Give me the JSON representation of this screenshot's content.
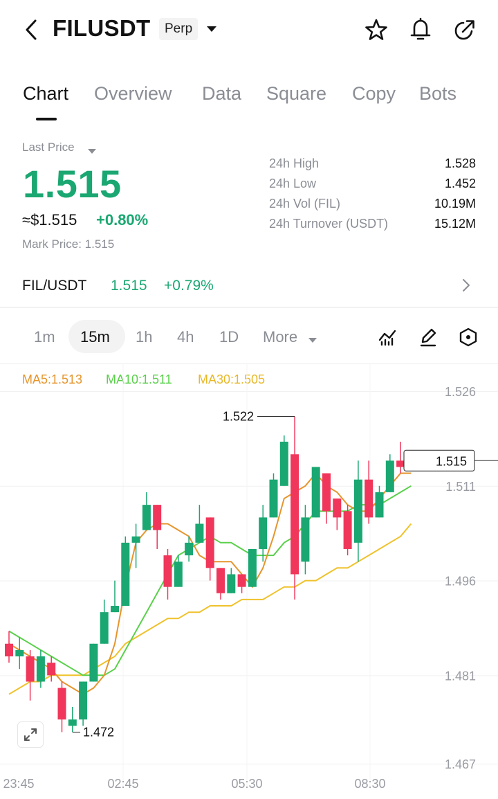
{
  "header": {
    "symbol": "FILUSDT",
    "contract_type": "Perp",
    "icons": [
      "back-arrow-icon",
      "star-icon",
      "bell-icon",
      "share-icon"
    ]
  },
  "tabs": [
    {
      "label": "Chart",
      "active": true
    },
    {
      "label": "Overview",
      "active": false
    },
    {
      "label": "Data",
      "active": false
    },
    {
      "label": "Square",
      "active": false
    },
    {
      "label": "Copy",
      "active": false
    },
    {
      "label": "Bots",
      "active": false
    }
  ],
  "price": {
    "last_price_label": "Last Price",
    "last_price": "1.515",
    "usd_value": "≈$1.515",
    "change_pct": "+0.80%",
    "mark_price": "Mark Price:  1.515"
  },
  "stats": [
    {
      "label": "24h  High",
      "value": "1.528"
    },
    {
      "label": "24h  Low",
      "value": "1.452"
    },
    {
      "label": "24h  Vol (FIL)",
      "value": "10.19M"
    },
    {
      "label": "24h  Turnover (USDT)",
      "value": "15.12M"
    }
  ],
  "pair": {
    "name": "FIL/USDT",
    "price": "1.515",
    "change": "+0.79%"
  },
  "intervals": [
    {
      "label": "1m",
      "active": false
    },
    {
      "label": "15m",
      "active": true
    },
    {
      "label": "1h",
      "active": false
    },
    {
      "label": "4h",
      "active": false
    },
    {
      "label": "1D",
      "active": false
    },
    {
      "label": "More",
      "active": false
    }
  ],
  "toolbar_icons": [
    "indicator-icon",
    "draw-pen-icon",
    "settings-hexagon-icon"
  ],
  "colors": {
    "up": "#1aa772",
    "down": "#f0365a",
    "ma5": "#e6952c",
    "ma10": "#5ad04b",
    "ma30": "#efc22b"
  },
  "chart_data": {
    "type": "candlestick",
    "ma_legend": [
      {
        "name": "MA5",
        "value": "1.513",
        "text": "MA5:1.513"
      },
      {
        "name": "MA10",
        "value": "1.511",
        "text": "MA10:1.511"
      },
      {
        "name": "MA30",
        "value": "1.505",
        "text": "MA30:1.505"
      }
    ],
    "y_ticks": [
      "1.526",
      "1.511",
      "1.496",
      "1.481",
      "1.467"
    ],
    "x_ticks": [
      "23:45",
      "02:45",
      "05:30",
      "08:30"
    ],
    "ylim": [
      1.467,
      1.526
    ],
    "current_price_label": "1.515",
    "max_annotation": "1.522",
    "min_annotation": "1.472",
    "candles": [
      [
        1.486,
        1.484,
        1.488,
        1.483
      ],
      [
        1.484,
        1.485,
        1.487,
        1.482
      ],
      [
        1.484,
        1.48,
        1.485,
        1.477
      ],
      [
        1.48,
        1.484,
        1.485,
        1.479
      ],
      [
        1.483,
        1.481,
        1.484,
        1.48
      ],
      [
        1.479,
        1.474,
        1.48,
        1.472
      ],
      [
        1.473,
        1.474,
        1.476,
        1.472
      ],
      [
        1.474,
        1.48,
        1.48,
        1.473
      ],
      [
        1.48,
        1.486,
        1.486,
        1.48
      ],
      [
        1.486,
        1.491,
        1.493,
        1.486
      ],
      [
        1.491,
        1.492,
        1.496,
        1.491
      ],
      [
        1.492,
        1.502,
        1.503,
        1.492
      ],
      [
        1.502,
        1.503,
        1.505,
        1.498
      ],
      [
        1.504,
        1.508,
        1.51,
        1.504
      ],
      [
        1.508,
        1.504,
        1.508,
        1.501
      ],
      [
        1.5,
        1.495,
        1.501,
        1.493
      ],
      [
        1.495,
        1.499,
        1.5,
        1.495
      ],
      [
        1.5,
        1.502,
        1.503,
        1.499
      ],
      [
        1.502,
        1.505,
        1.508,
        1.502
      ],
      [
        1.506,
        1.498,
        1.506,
        1.496
      ],
      [
        1.498,
        1.494,
        1.498,
        1.493
      ],
      [
        1.494,
        1.497,
        1.498,
        1.494
      ],
      [
        1.497,
        1.495,
        1.497,
        1.494
      ],
      [
        1.495,
        1.501,
        1.501,
        1.495
      ],
      [
        1.501,
        1.506,
        1.508,
        1.499
      ],
      [
        1.506,
        1.512,
        1.513,
        1.506
      ],
      [
        1.511,
        1.518,
        1.519,
        1.511
      ],
      [
        1.516,
        1.497,
        1.522,
        1.493
      ],
      [
        1.499,
        1.506,
        1.508,
        1.497
      ],
      [
        1.506,
        1.514,
        1.514,
        1.506
      ],
      [
        1.513,
        1.507,
        1.513,
        1.505
      ],
      [
        1.509,
        1.506,
        1.509,
        1.504
      ],
      [
        1.507,
        1.501,
        1.508,
        1.5
      ],
      [
        1.502,
        1.512,
        1.515,
        1.499
      ],
      [
        1.512,
        1.506,
        1.515,
        1.505
      ],
      [
        1.506,
        1.51,
        1.511,
        1.506
      ],
      [
        1.51,
        1.515,
        1.516,
        1.51
      ],
      [
        1.515,
        1.514,
        1.518,
        1.513
      ],
      [
        1.514,
        1.515,
        1.515,
        1.514
      ]
    ],
    "ma5": [
      1.486,
      1.485,
      1.484,
      1.483,
      1.482,
      1.48,
      1.479,
      1.478,
      1.479,
      1.481,
      1.486,
      1.495,
      1.502,
      1.504,
      1.505,
      1.505,
      1.504,
      1.503,
      1.5,
      1.499,
      1.499,
      1.499,
      1.497,
      1.495,
      1.498,
      1.503,
      1.509,
      1.51,
      1.511,
      1.513,
      1.511,
      1.51,
      1.508,
      1.507,
      1.507,
      1.509,
      1.511,
      1.513,
      1.513
    ],
    "ma10": [
      1.488,
      1.487,
      1.486,
      1.485,
      1.484,
      1.483,
      1.482,
      1.481,
      1.481,
      1.481,
      1.482,
      1.485,
      1.488,
      1.491,
      1.494,
      1.497,
      1.5,
      1.501,
      1.502,
      1.503,
      1.502,
      1.502,
      1.501,
      1.5,
      1.5,
      1.5,
      1.502,
      1.503,
      1.505,
      1.507,
      1.507,
      1.507,
      1.507,
      1.508,
      1.508,
      1.508,
      1.509,
      1.51,
      1.511
    ],
    "ma30": [
      1.478,
      1.479,
      1.48,
      1.48,
      1.481,
      1.481,
      1.481,
      1.481,
      1.482,
      1.483,
      1.484,
      1.486,
      1.487,
      1.488,
      1.489,
      1.49,
      1.49,
      1.491,
      1.491,
      1.492,
      1.492,
      1.492,
      1.493,
      1.493,
      1.493,
      1.494,
      1.495,
      1.495,
      1.496,
      1.496,
      1.497,
      1.498,
      1.498,
      1.499,
      1.5,
      1.501,
      1.502,
      1.503,
      1.505
    ]
  }
}
